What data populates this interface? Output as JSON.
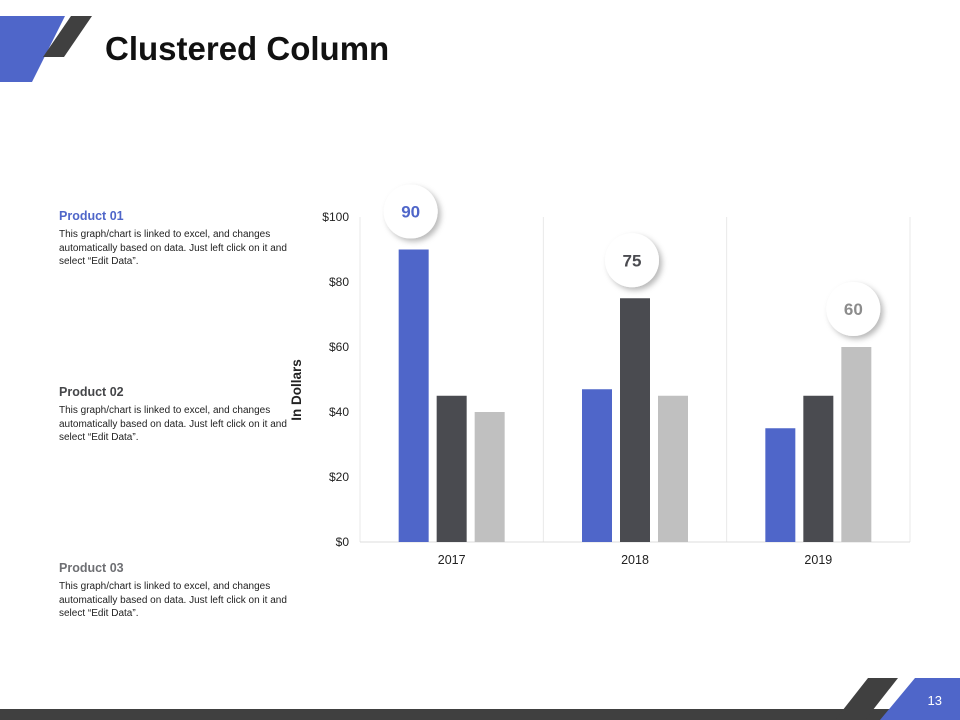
{
  "slide": {
    "title": "Clustered Column",
    "page_number": "13"
  },
  "products": [
    {
      "name": "Product 01",
      "color": "#4f66c9",
      "description": "This graph/chart is linked to excel, and changes automatically based on data. Just left click on it and select “Edit Data”."
    },
    {
      "name": "Product 02",
      "color": "#454649",
      "description": "This graph/chart is linked to excel, and changes automatically based on data. Just left click on it and select “Edit Data”."
    },
    {
      "name": "Product 03",
      "color": "#6e6f73",
      "description": "This graph/chart is linked to excel, and changes automatically based on data. Just left click on it and select “Edit Data”."
    }
  ],
  "chart_data": {
    "type": "bar",
    "categories": [
      "2017",
      "2018",
      "2019"
    ],
    "series": [
      {
        "values": [
          90,
          47,
          35
        ],
        "color": "#4f66c9"
      },
      {
        "values": [
          45,
          75,
          45
        ],
        "color": "#4a4b50"
      },
      {
        "values": [
          40,
          45,
          60
        ],
        "color": "#c0c0c0"
      }
    ],
    "ylabel": "In Dollars",
    "ylim": [
      0,
      100
    ],
    "y_ticks": [
      "$0",
      "$20",
      "$40",
      "$60",
      "$80",
      "$100"
    ],
    "callouts": [
      {
        "category": "2017",
        "value": 90,
        "label": "90",
        "color": "#4f66c9"
      },
      {
        "category": "2018",
        "value": 75,
        "label": "75",
        "color": "#4a4b50"
      },
      {
        "category": "2019",
        "value": 60,
        "label": "60",
        "color": "#8c8c8c"
      }
    ],
    "grid": "vertical category separators"
  },
  "theme": {
    "accent": "#4f66c9",
    "dark": "#404040"
  }
}
